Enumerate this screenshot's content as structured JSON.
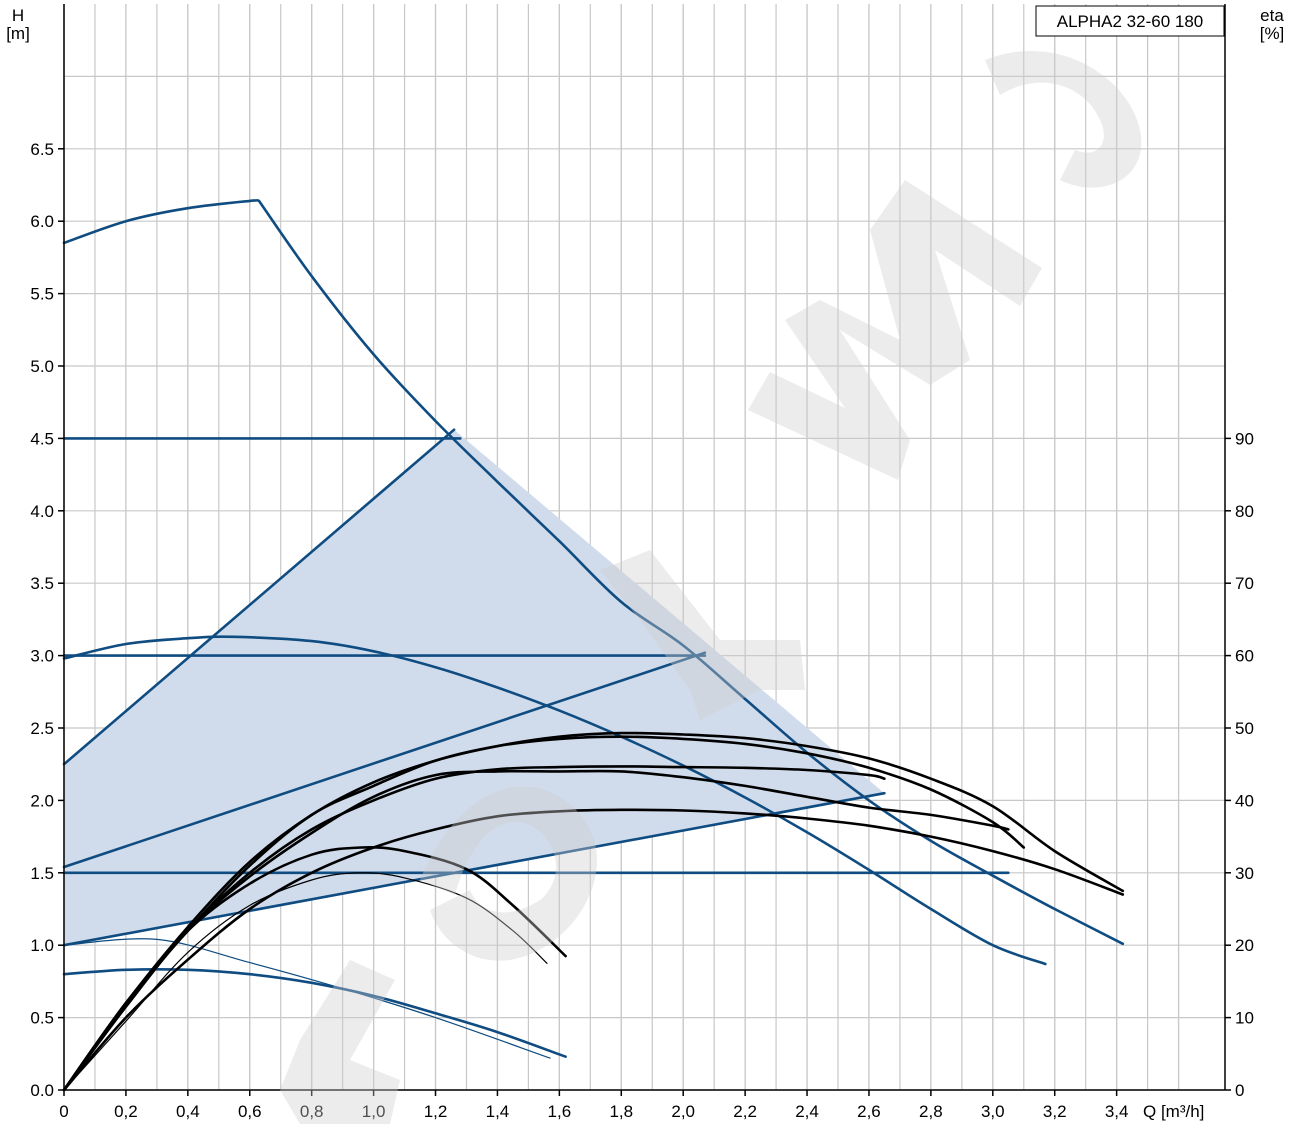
{
  "chart_data": {
    "type": "line",
    "title": "ALPHA2 32-60 180",
    "xlabel": "Q [m³/h]",
    "ylabel_left": "H\n[m]",
    "ylabel_right": "eta\n[%]",
    "xlim": [
      0,
      3.75
    ],
    "ylim_left": [
      0,
      7.5
    ],
    "ylim_right": [
      0,
      150
    ],
    "x_ticks": [
      "0",
      "0,2",
      "0,4",
      "0,6",
      "0,8",
      "1,0",
      "1,2",
      "1,4",
      "1,6",
      "1,8",
      "2,0",
      "2,2",
      "2,4",
      "2,6",
      "2,8",
      "3,0",
      "3,2",
      "3,4"
    ],
    "y_ticks_left": [
      "0.0",
      "0.5",
      "1.0",
      "1.5",
      "2.0",
      "2.5",
      "3.0",
      "3.5",
      "4.0",
      "4.5",
      "5.0",
      "5.5",
      "6.0",
      "6.5"
    ],
    "y_ticks_right": [
      "0",
      "10",
      "20",
      "30",
      "40",
      "50",
      "60",
      "70",
      "80",
      "90"
    ],
    "grid": true,
    "colors": {
      "head_curves": "#0f4c81",
      "efficiency_curves": "#000000",
      "range_fill": "#d0dceb",
      "grid": "#c8c8c8",
      "watermark": "#cfcfcf"
    },
    "operating_range": {
      "x": [
        0,
        0,
        1.26,
        2.65,
        0
      ],
      "y": [
        1.0,
        2.25,
        4.56,
        2.05,
        1.0
      ]
    },
    "series": [
      {
        "kind": "head",
        "x": [
          0,
          0.2,
          0.4,
          0.6,
          0.63,
          0.8,
          1.0,
          1.2,
          1.4,
          1.6,
          1.8,
          2.0,
          2.2,
          2.4,
          2.6,
          2.8,
          3.0,
          3.2,
          3.42
        ],
        "y": [
          5.85,
          6.0,
          6.09,
          6.14,
          6.14,
          5.62,
          5.08,
          4.62,
          4.2,
          3.79,
          3.37,
          3.07,
          2.7,
          2.33,
          2.0,
          1.72,
          1.48,
          1.25,
          1.01
        ]
      },
      {
        "kind": "head",
        "x": [
          0,
          1.28
        ],
        "y": [
          4.5,
          4.5
        ]
      },
      {
        "kind": "head",
        "x": [
          0,
          2.07
        ],
        "y": [
          3.0,
          3.0
        ]
      },
      {
        "kind": "head",
        "x": [
          0,
          3.05
        ],
        "y": [
          1.5,
          1.5
        ]
      },
      {
        "kind": "head",
        "x": [
          0,
          1.26
        ],
        "y": [
          2.25,
          4.56
        ]
      },
      {
        "kind": "head",
        "x": [
          0,
          2.07
        ],
        "y": [
          1.54,
          3.02
        ]
      },
      {
        "kind": "head",
        "x": [
          0,
          2.65
        ],
        "y": [
          1.0,
          2.05
        ]
      },
      {
        "kind": "head",
        "x": [
          0,
          0.2,
          0.4,
          0.55,
          0.8,
          1.0,
          1.2,
          1.4,
          1.6,
          1.8,
          2.0,
          2.2,
          2.4,
          2.6,
          2.8,
          3.0,
          3.17
        ],
        "y": [
          2.98,
          3.08,
          3.12,
          3.13,
          3.1,
          3.03,
          2.92,
          2.78,
          2.62,
          2.44,
          2.24,
          2.02,
          1.78,
          1.52,
          1.25,
          1.0,
          0.87
        ]
      },
      {
        "kind": "head",
        "x": [
          0,
          0.2,
          0.4,
          0.6,
          0.8,
          1.0,
          1.2,
          1.4,
          1.62
        ],
        "y": [
          0.8,
          0.83,
          0.83,
          0.8,
          0.74,
          0.65,
          0.53,
          0.4,
          0.23
        ]
      },
      {
        "kind": "head",
        "x": [
          0,
          0.3,
          0.6,
          0.9,
          1.2,
          1.57
        ],
        "y": [
          1.0,
          1.04,
          0.88,
          0.7,
          0.5,
          0.22
        ]
      },
      {
        "kind": "eta",
        "x": [
          0,
          0.2,
          0.4,
          0.6,
          0.8,
          1.0,
          1.2,
          1.4,
          1.6,
          1.8,
          2.0,
          2.2,
          2.4,
          2.6,
          2.8,
          3.0,
          3.2,
          3.42
        ],
        "y": [
          0,
          10,
          18,
          25,
          30,
          33.5,
          36,
          37.8,
          38.5,
          38.7,
          38.6,
          38.2,
          37.5,
          36.5,
          35,
          33,
          30.5,
          27
        ]
      },
      {
        "kind": "eta",
        "x": [
          0,
          0.2,
          0.4,
          0.6,
          0.8,
          1.0,
          1.2,
          1.4,
          1.6,
          1.8,
          2.0,
          2.2,
          2.4,
          2.6,
          2.65
        ],
        "y": [
          0,
          12,
          22,
          30,
          36,
          40,
          43,
          44.3,
          44.6,
          44.7,
          44.6,
          44.5,
          44.2,
          43.5,
          43
        ]
      },
      {
        "kind": "eta",
        "x": [
          0,
          0.2,
          0.4,
          0.6,
          0.8,
          1.0,
          1.2,
          1.4,
          1.6,
          1.8,
          2.0,
          2.2,
          2.4,
          2.6,
          2.8,
          3.0,
          3.05
        ],
        "y": [
          0,
          11.5,
          22,
          29.5,
          35.5,
          40.5,
          43.5,
          44,
          44,
          44,
          43.2,
          42,
          40.5,
          39,
          38,
          36.5,
          36
        ]
      },
      {
        "kind": "eta",
        "x": [
          0,
          0.2,
          0.4,
          0.6,
          0.8,
          1.0,
          1.2,
          1.4,
          1.6,
          1.8,
          2.0,
          2.2,
          2.4,
          2.6,
          2.8,
          3.0,
          3.1
        ],
        "y": [
          0,
          12,
          22,
          31,
          38,
          42,
          45.5,
          47.5,
          48.5,
          48.8,
          48.5,
          47.8,
          46.5,
          44.5,
          41.5,
          37,
          33.5
        ]
      },
      {
        "kind": "eta",
        "x": [
          0,
          0.2,
          0.4,
          0.6,
          0.8,
          1.0,
          1.2,
          1.4,
          1.6,
          1.8,
          2.0,
          2.2,
          2.4,
          2.6,
          2.8,
          3.0,
          3.2,
          3.42
        ],
        "y": [
          0,
          12,
          22.5,
          31.5,
          38,
          42.5,
          45.5,
          47.5,
          48.8,
          49.3,
          49.1,
          48.6,
          47.5,
          45.8,
          43,
          39.2,
          33,
          27.5
        ]
      },
      {
        "kind": "eta",
        "x": [
          0,
          0.2,
          0.4,
          0.6,
          0.8,
          0.96,
          1.1,
          1.3,
          1.45,
          1.62
        ],
        "y": [
          0,
          12,
          22,
          28.5,
          32.5,
          33.5,
          33,
          30.5,
          25.5,
          18.5
        ]
      },
      {
        "kind": "eta",
        "x": [
          0,
          0.2,
          0.4,
          0.6,
          0.8,
          0.95,
          1.1,
          1.3,
          1.45,
          1.56
        ],
        "y": [
          0,
          9.5,
          19,
          25.5,
          29,
          30,
          29.3,
          26.5,
          22,
          17.5
        ]
      }
    ]
  },
  "watermark": {
    "text": "TORMO"
  }
}
